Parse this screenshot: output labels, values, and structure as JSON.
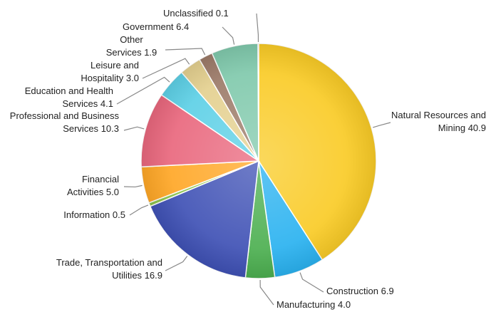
{
  "chart_data": {
    "type": "pie",
    "categories": [
      "Natural Resources and Mining",
      "Construction",
      "Manufacturing",
      "Trade, Transportation and Utilities",
      "Information",
      "Financial Activities",
      "Professional and Business Services",
      "Education and Health Services",
      "Leisure and Hospitality",
      "Other Services",
      "Government",
      "Unclassified"
    ],
    "values": [
      40.9,
      6.9,
      4.0,
      16.9,
      0.5,
      5.0,
      10.3,
      4.1,
      3.0,
      1.9,
      6.4,
      0.1
    ],
    "value_labels": [
      "40.9",
      "6.9",
      "4.0",
      "16.9",
      "0.5",
      "5.0",
      "10.3",
      "4.1",
      "3.0",
      "1.9",
      "6.4",
      "0.1"
    ],
    "colors": [
      "#f9cb26",
      "#2ab2f0",
      "#4caf50",
      "#3f51b5",
      "#8bc34a",
      "#ffa726",
      "#e9677d",
      "#5dd0e6",
      "#e4d08f",
      "#9c7a68",
      "#80c9ac",
      "#b0b0b0"
    ]
  }
}
